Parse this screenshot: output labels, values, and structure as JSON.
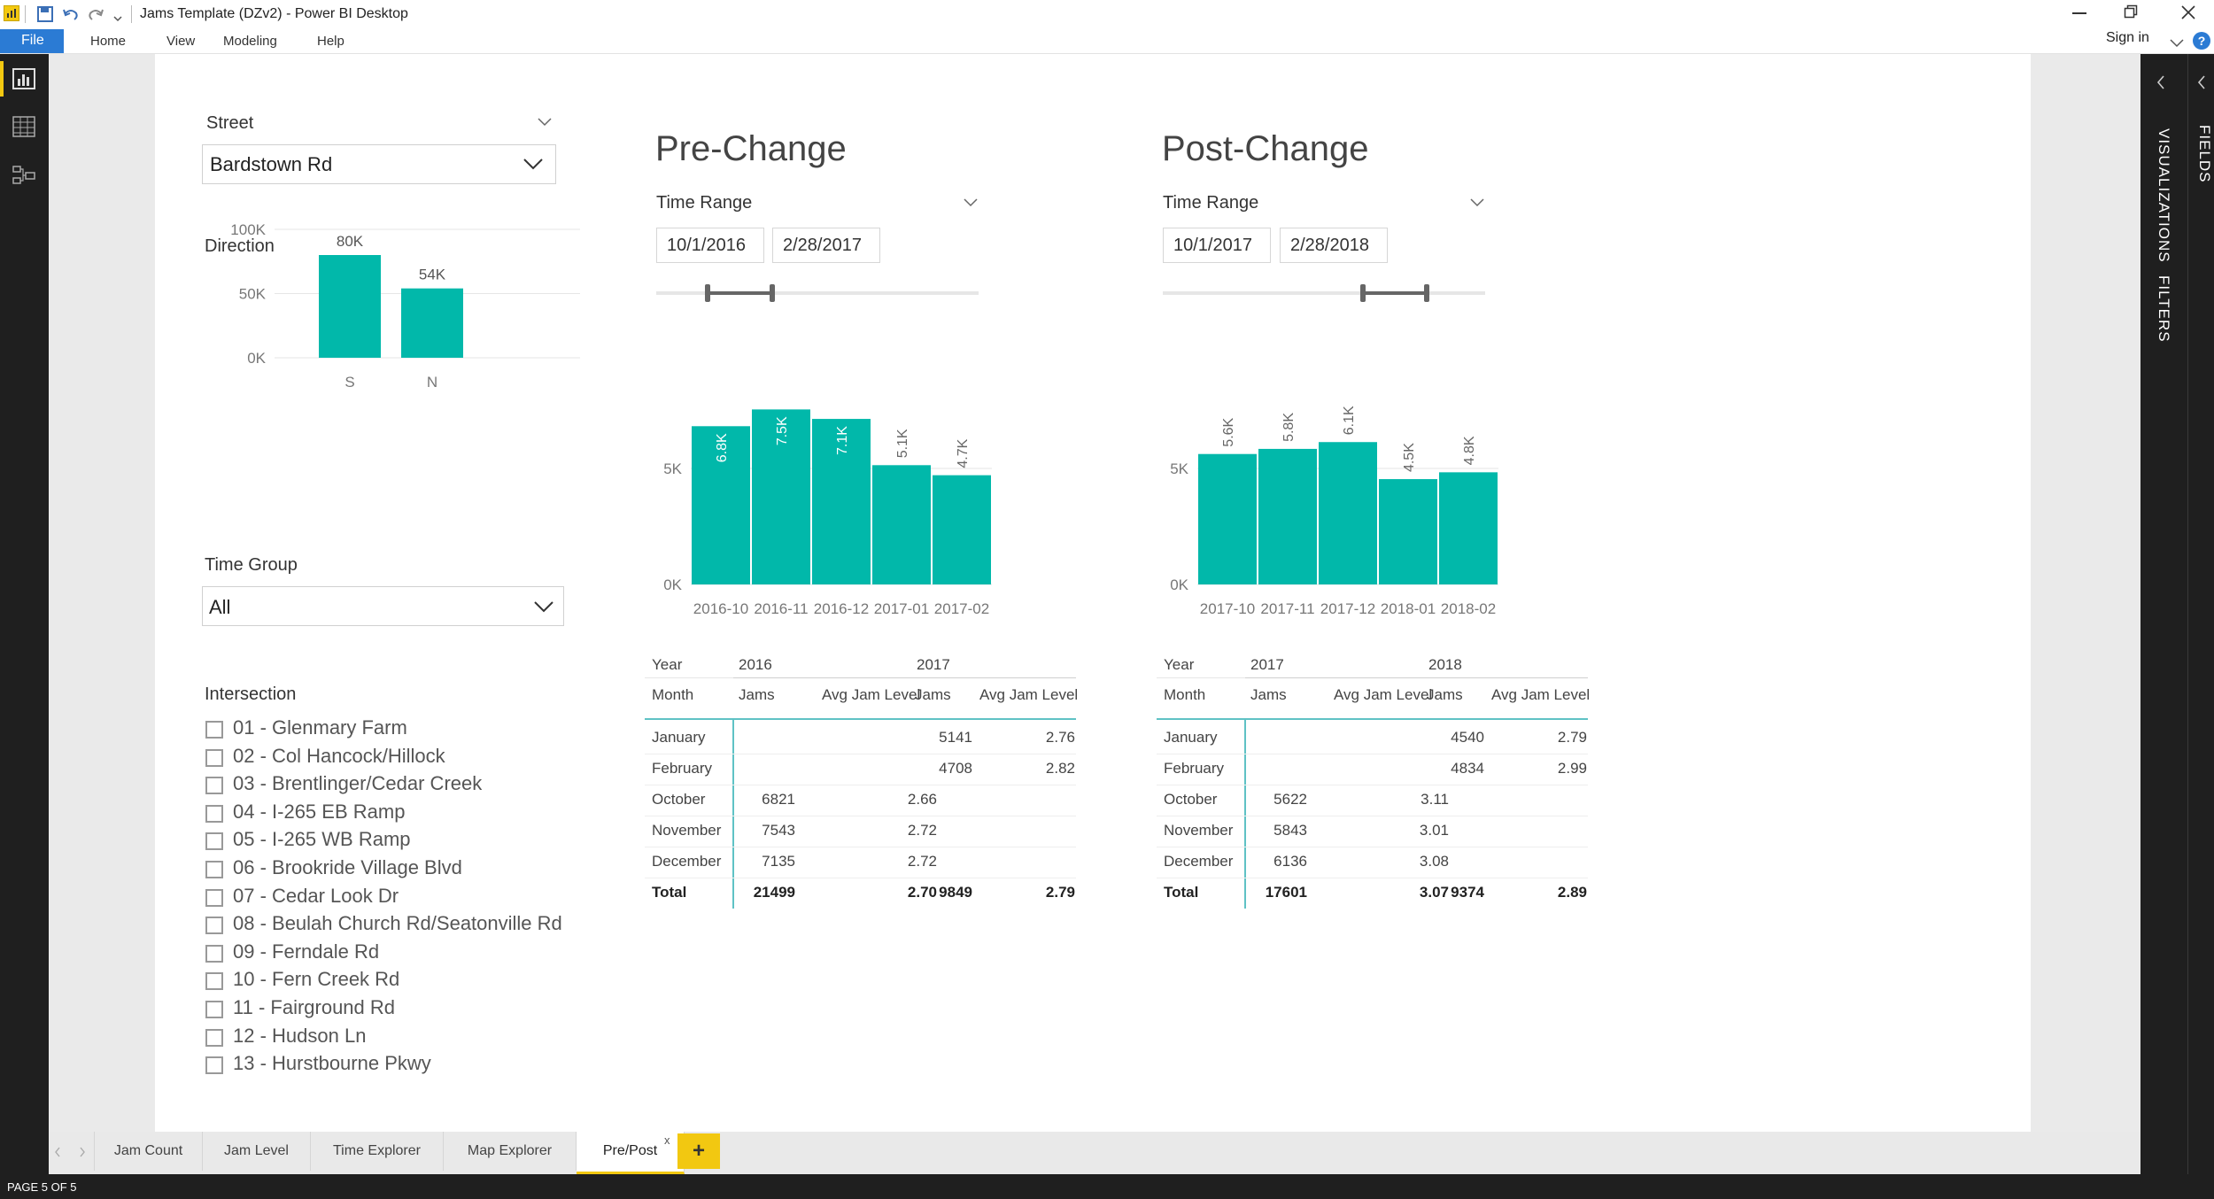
{
  "window": {
    "title": "Jams Template (DZv2) - Power BI Desktop",
    "sign_in": "Sign in",
    "help_glyph": "?",
    "icons": [
      "app-logo-icon",
      "save-icon",
      "undo-icon",
      "redo-icon",
      "customize-icon",
      "minimize-icon",
      "restore-icon",
      "close-icon"
    ]
  },
  "ribbon": {
    "file": "File",
    "tabs": [
      "Home",
      "View",
      "Modeling",
      "Help"
    ]
  },
  "leftnav": [
    "report-view-icon",
    "data-view-icon",
    "model-view-icon"
  ],
  "right_pane": {
    "visualizations": "VISUALIZATIONS",
    "filters": "FILTERS",
    "fields": "FIELDS"
  },
  "street": {
    "label": "Street",
    "value": "Bardstown Rd"
  },
  "direction": {
    "label": "Direction",
    "y_ticks": [
      "100K",
      "50K",
      "0K"
    ],
    "chart_data": {
      "type": "bar",
      "categories": [
        "S",
        "N"
      ],
      "values": [
        80000,
        54000
      ],
      "data_labels": [
        "80K",
        "54K"
      ],
      "ylim": [
        0,
        100000
      ],
      "color": "#01B8AA",
      "grid": true
    }
  },
  "time_group": {
    "label": "Time Group",
    "value": "All"
  },
  "intersection": {
    "label": "Intersection",
    "items": [
      "01 - Glenmary Farm",
      "02 - Col Hancock/Hillock",
      "03 - Brentlinger/Cedar Creek",
      "04 - I-265 EB Ramp",
      "05 - I-265 WB Ramp",
      "06 - Brookride Village Blvd",
      "07 - Cedar Look Dr",
      "08 - Beulah Church Rd/Seatonville Rd",
      "09 - Ferndale Rd",
      "10 - Fern Creek Rd",
      "11 - Fairground Rd",
      "12 - Hudson Ln",
      "13 - Hurstbourne Pkwy"
    ]
  },
  "pre": {
    "title": "Pre-Change",
    "time_range_label": "Time Range",
    "start": "10/1/2016",
    "end": "2/28/2017",
    "slider": {
      "start_fraction": 0.16,
      "end_fraction": 0.36
    },
    "y_ticks": [
      "5K",
      "0K"
    ],
    "chart_data": {
      "type": "bar",
      "categories": [
        "2016-10",
        "2016-11",
        "2016-12",
        "2017-01",
        "2017-02"
      ],
      "values": [
        6821,
        7543,
        7135,
        5141,
        4708
      ],
      "data_labels": [
        "6.8K",
        "7.5K",
        "7.1K",
        "5.1K",
        "4.7K"
      ],
      "ylim": [
        0,
        8500
      ],
      "color": "#01B8AA",
      "grid": true
    },
    "table": {
      "year_hdr": "Year",
      "month_hdr": "Month",
      "year1": "2016",
      "year2": "2017",
      "jams": "Jams",
      "avg": "Avg Jam Level",
      "rows": [
        {
          "month": "January",
          "j1": "",
          "a1": "",
          "j2": "5141",
          "a2": "2.76"
        },
        {
          "month": "February",
          "j1": "",
          "a1": "",
          "j2": "4708",
          "a2": "2.82"
        },
        {
          "month": "October",
          "j1": "6821",
          "a1": "2.66",
          "j2": "",
          "a2": ""
        },
        {
          "month": "November",
          "j1": "7543",
          "a1": "2.72",
          "j2": "",
          "a2": ""
        },
        {
          "month": "December",
          "j1": "7135",
          "a1": "2.72",
          "j2": "",
          "a2": ""
        }
      ],
      "total": {
        "month": "Total",
        "j1": "21499",
        "a1": "2.70",
        "j2": "9849",
        "a2": "2.79"
      }
    }
  },
  "post": {
    "title": "Post-Change",
    "time_range_label": "Time Range",
    "start": "10/1/2017",
    "end": "2/28/2018",
    "slider": {
      "start_fraction": 0.62,
      "end_fraction": 0.82
    },
    "y_ticks": [
      "5K",
      "0K"
    ],
    "chart_data": {
      "type": "bar",
      "categories": [
        "2017-10",
        "2017-11",
        "2017-12",
        "2018-01",
        "2018-02"
      ],
      "values": [
        5622,
        5843,
        6136,
        4540,
        4834
      ],
      "data_labels": [
        "5.6K",
        "5.8K",
        "6.1K",
        "4.5K",
        "4.8K"
      ],
      "ylim": [
        0,
        8500
      ],
      "color": "#01B8AA",
      "grid": true
    },
    "table": {
      "year_hdr": "Year",
      "month_hdr": "Month",
      "year1": "2017",
      "year2": "2018",
      "jams": "Jams",
      "avg": "Avg Jam Level",
      "rows": [
        {
          "month": "January",
          "j1": "",
          "a1": "",
          "j2": "4540",
          "a2": "2.79"
        },
        {
          "month": "February",
          "j1": "",
          "a1": "",
          "j2": "4834",
          "a2": "2.99"
        },
        {
          "month": "October",
          "j1": "5622",
          "a1": "3.11",
          "j2": "",
          "a2": ""
        },
        {
          "month": "November",
          "j1": "5843",
          "a1": "3.01",
          "j2": "",
          "a2": ""
        },
        {
          "month": "December",
          "j1": "6136",
          "a1": "3.08",
          "j2": "",
          "a2": ""
        }
      ],
      "total": {
        "month": "Total",
        "j1": "17601",
        "a1": "3.07",
        "j2": "9374",
        "a2": "2.89"
      }
    }
  },
  "tabs": {
    "items": [
      "Jam Count",
      "Jam Level",
      "Time Explorer",
      "Map Explorer",
      "Pre/Post"
    ],
    "active": "Pre/Post",
    "close": "x",
    "add": "+"
  },
  "status": {
    "page": "PAGE 5 OF 5"
  }
}
